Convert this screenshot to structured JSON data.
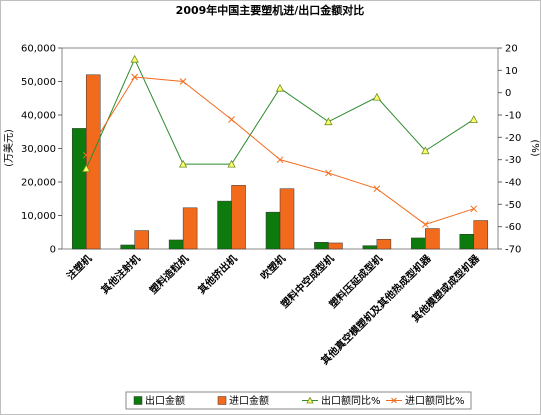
{
  "chart_data": {
    "type": "bar",
    "title": "2009年中国主要塑机进/出口金额对比",
    "ylabel": "(万美元)",
    "y2label": "(%)",
    "ylim": [
      0,
      60000
    ],
    "y_ticks": [
      "0",
      "10,000",
      "20,000",
      "30,000",
      "40,000",
      "50,000",
      "60,000"
    ],
    "y2lim": [
      -70,
      20
    ],
    "y2_ticks": [
      "-70",
      "-60",
      "-50",
      "-40",
      "-30",
      "-20",
      "-10",
      "0",
      "10",
      "20"
    ],
    "categories": [
      "注塑机",
      "其他注射机",
      "塑料造粒机",
      "其他挤出机",
      "吹塑机",
      "塑料中空成型机",
      "塑料压延成型机",
      "其他真空模塑机及其他热成型机器",
      "其他模塑或成型机器"
    ],
    "series": [
      {
        "name": "出口金额",
        "kind": "bar",
        "axis": "left",
        "color": "#0d7a0d",
        "values": [
          36000,
          1200,
          2700,
          14300,
          11000,
          2000,
          1000,
          3300,
          4400
        ]
      },
      {
        "name": "进口金额",
        "kind": "bar",
        "axis": "left",
        "color": "#f26b1d",
        "values": [
          52000,
          5500,
          12300,
          19000,
          18000,
          1800,
          2900,
          6100,
          8500
        ]
      },
      {
        "name": "出口额同比%",
        "kind": "line",
        "axis": "right",
        "color": "#2e8b2e",
        "values": [
          -34,
          15,
          -32,
          -32,
          2,
          -13,
          -2,
          -26,
          -12
        ]
      },
      {
        "name": "进口额同比%",
        "kind": "line",
        "axis": "right",
        "color": "#f26b1d",
        "values": [
          -28,
          7,
          5,
          -12,
          -30,
          -36,
          -43,
          -59,
          -52
        ]
      }
    ],
    "grid": false,
    "legend_position": "bottom"
  }
}
